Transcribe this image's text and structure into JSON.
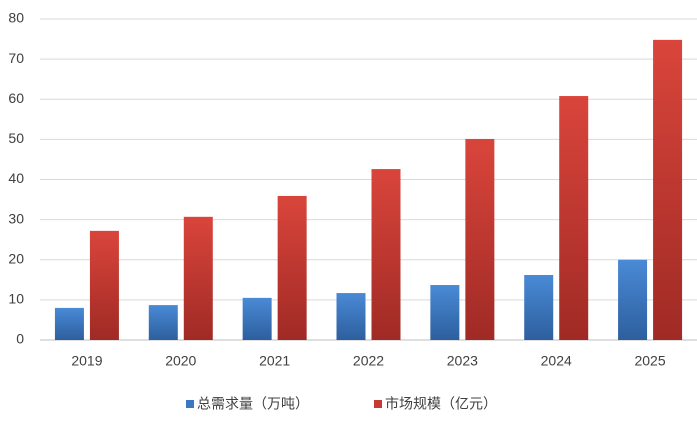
{
  "chart_data": {
    "type": "bar",
    "categories": [
      "2019",
      "2020",
      "2021",
      "2022",
      "2023",
      "2024",
      "2025"
    ],
    "series": [
      {
        "name": "总需求量（万吨）",
        "color": "#3b78c3",
        "values": [
          8,
          8.7,
          10.5,
          11.7,
          13.7,
          16.2,
          20
        ]
      },
      {
        "name": "市场规模（亿元）",
        "color": "#c63a32",
        "values": [
          27.2,
          30.7,
          35.9,
          42.6,
          50.1,
          60.8,
          74.8
        ]
      }
    ],
    "ylim": [
      0,
      80
    ],
    "yticks": [
      0,
      10,
      20,
      30,
      40,
      50,
      60,
      70,
      80
    ],
    "grid": true,
    "legend": "bottom"
  }
}
